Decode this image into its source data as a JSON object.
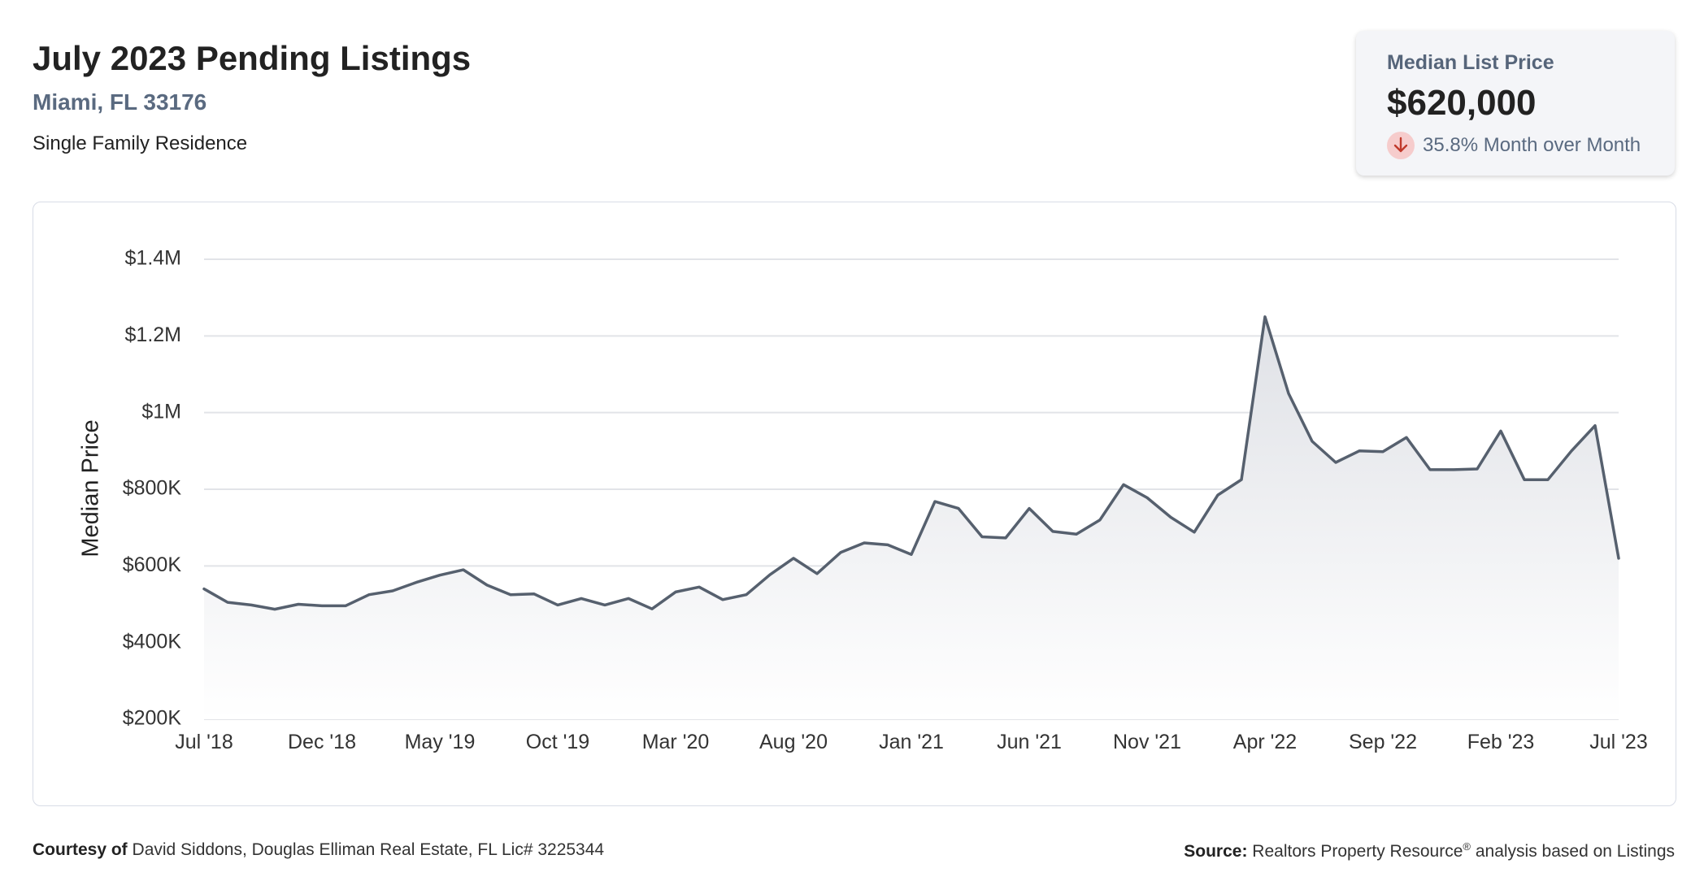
{
  "header": {
    "title": "July 2023 Pending Listings",
    "location": "Miami, FL 33176",
    "property_type": "Single Family Residence"
  },
  "stat_card": {
    "label": "Median List Price",
    "value": "$620,000",
    "change": "35.8% Month over Month",
    "direction_icon": "arrow-down-icon",
    "icon_color": "#c0392b",
    "icon_bg": "#f6cccc"
  },
  "footer": {
    "courtesy_label": "Courtesy of",
    "courtesy_text": "David Siddons, Douglas Elliman Real Estate, FL Lic# 3225344",
    "source_label": "Source:",
    "source_text_1": "Realtors Property Resource",
    "source_mark": "®",
    "source_text_2": "analysis based on Listings"
  },
  "chart_data": {
    "type": "area",
    "ylabel": "Median Price",
    "ylim": [
      200000,
      1400000
    ],
    "y_ticks": [
      200000,
      400000,
      600000,
      800000,
      1000000,
      1200000,
      1400000
    ],
    "y_tick_labels": [
      "$200K",
      "$400K",
      "$600K",
      "$800K",
      "$1M",
      "$1.2M",
      "$1.4M"
    ],
    "x_tick_labels": [
      "Jul '18",
      "Dec '18",
      "May '19",
      "Oct '19",
      "Mar '20",
      "Aug '20",
      "Jan '21",
      "Jun '21",
      "Nov '21",
      "Apr '22",
      "Sep '22",
      "Feb '23",
      "Jul '23"
    ],
    "x_tick_every_months": 5,
    "grid": true,
    "colors": {
      "line": "#56606e",
      "fill_top": "#e3e5ea",
      "fill_bottom": "#ffffff",
      "grid": "#e2e4e8"
    },
    "x": [
      "Jul 2018",
      "Aug 2018",
      "Sep 2018",
      "Oct 2018",
      "Nov 2018",
      "Dec 2018",
      "Jan 2019",
      "Feb 2019",
      "Mar 2019",
      "Apr 2019",
      "May 2019",
      "Jun 2019",
      "Jul 2019",
      "Aug 2019",
      "Sep 2019",
      "Oct 2019",
      "Nov 2019",
      "Dec 2019",
      "Jan 2020",
      "Feb 2020",
      "Mar 2020",
      "Apr 2020",
      "May 2020",
      "Jun 2020",
      "Jul 2020",
      "Aug 2020",
      "Sep 2020",
      "Oct 2020",
      "Nov 2020",
      "Dec 2020",
      "Jan 2021",
      "Feb 2021",
      "Mar 2021",
      "Apr 2021",
      "May 2021",
      "Jun 2021",
      "Jul 2021",
      "Aug 2021",
      "Sep 2021",
      "Oct 2021",
      "Nov 2021",
      "Dec 2021",
      "Jan 2022",
      "Feb 2022",
      "Mar 2022",
      "Apr 2022",
      "May 2022",
      "Jun 2022",
      "Jul 2022",
      "Aug 2022",
      "Sep 2022",
      "Oct 2022",
      "Nov 2022",
      "Dec 2022",
      "Jan 2023",
      "Feb 2023",
      "Mar 2023",
      "Apr 2023",
      "May 2023",
      "Jun 2023",
      "Jul 2023"
    ],
    "values": [
      540000,
      505000,
      498000,
      487000,
      500000,
      496000,
      496000,
      525000,
      535000,
      557000,
      576000,
      590000,
      550000,
      525000,
      527000,
      498000,
      515000,
      498000,
      515000,
      488000,
      532000,
      545000,
      512000,
      525000,
      577000,
      620000,
      580000,
      635000,
      660000,
      655000,
      630000,
      768000,
      750000,
      676000,
      673000,
      750000,
      690000,
      683000,
      720000,
      812000,
      778000,
      727000,
      688000,
      785000,
      825000,
      1250000,
      1050000,
      925000,
      870000,
      900000,
      898000,
      935000,
      851000,
      851000,
      853000,
      952000,
      825000,
      825000,
      900000,
      966000,
      620000
    ]
  }
}
